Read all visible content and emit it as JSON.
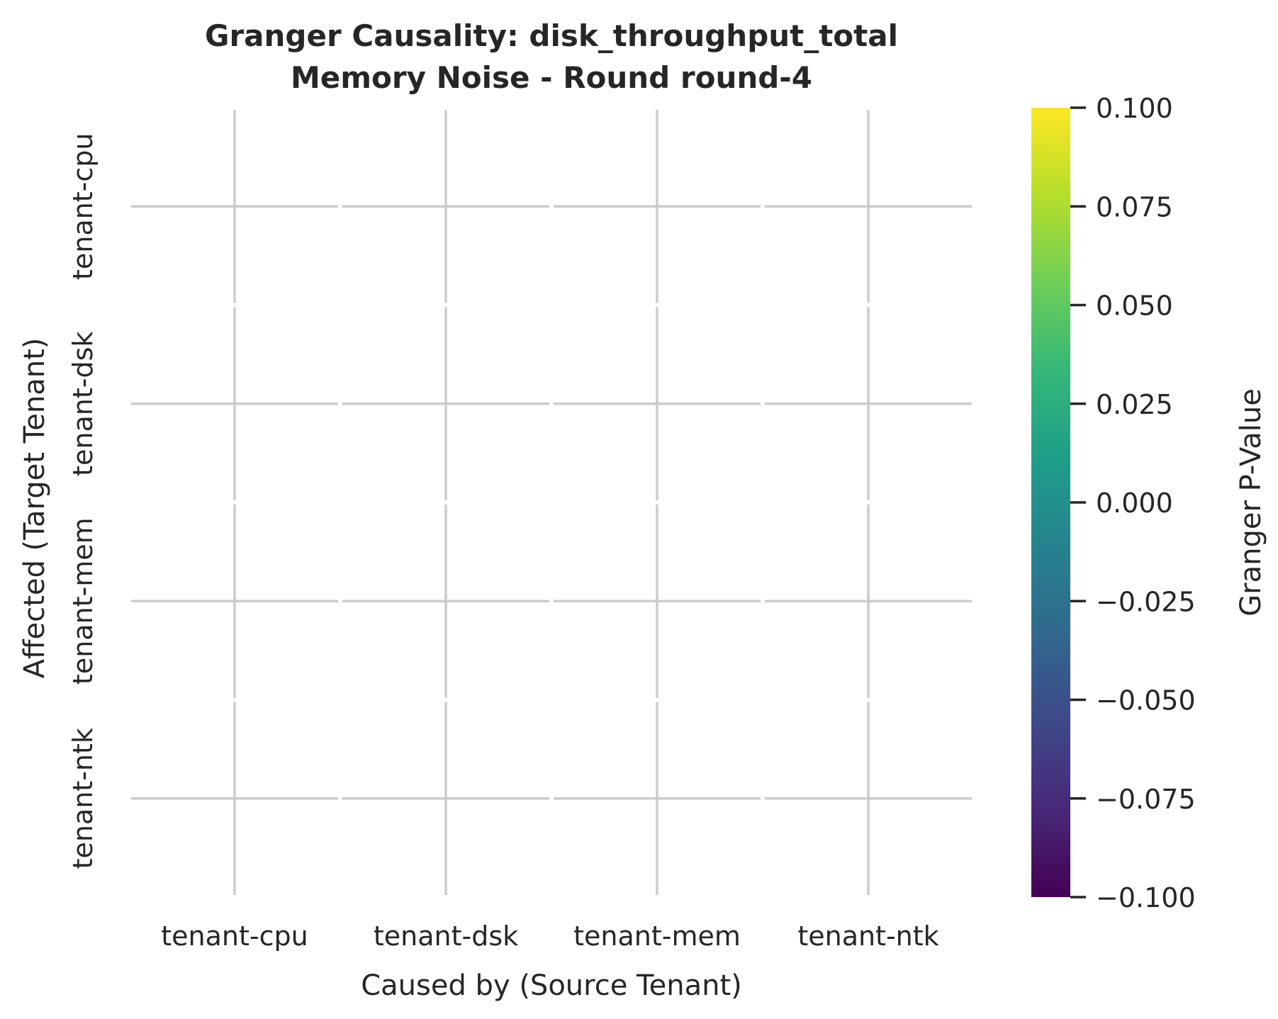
{
  "chart_data": {
    "type": "heatmap",
    "title": [
      "Granger Causality: disk_throughput_total",
      "Memory Noise - Round round-4"
    ],
    "xlabel": "Caused by (Source Tenant)",
    "ylabel": "Affected (Target Tenant)",
    "x_categories": [
      "tenant-cpu",
      "tenant-dsk",
      "tenant-mem",
      "tenant-ntk"
    ],
    "y_categories": [
      "tenant-cpu",
      "tenant-dsk",
      "tenant-mem",
      "tenant-ntk"
    ],
    "values": [
      [
        null,
        null,
        null,
        null
      ],
      [
        null,
        null,
        null,
        null
      ],
      [
        null,
        null,
        null,
        null
      ],
      [
        null,
        null,
        null,
        null
      ]
    ],
    "colorbar": {
      "label": "Granger P-Value",
      "colormap": "viridis",
      "range": [
        -0.1,
        0.1
      ],
      "ticks": [
        "0.100",
        "0.075",
        "0.050",
        "0.025",
        "0.000",
        "−0.025",
        "−0.050",
        "−0.075",
        "−0.100"
      ],
      "colors": [
        "#fde725",
        "#b5de2b",
        "#6ece58",
        "#35b779",
        "#1f9e89",
        "#26828e",
        "#31688e",
        "#3e4989",
        "#482878",
        "#440154"
      ]
    },
    "grid": true,
    "cells_masked": true
  }
}
